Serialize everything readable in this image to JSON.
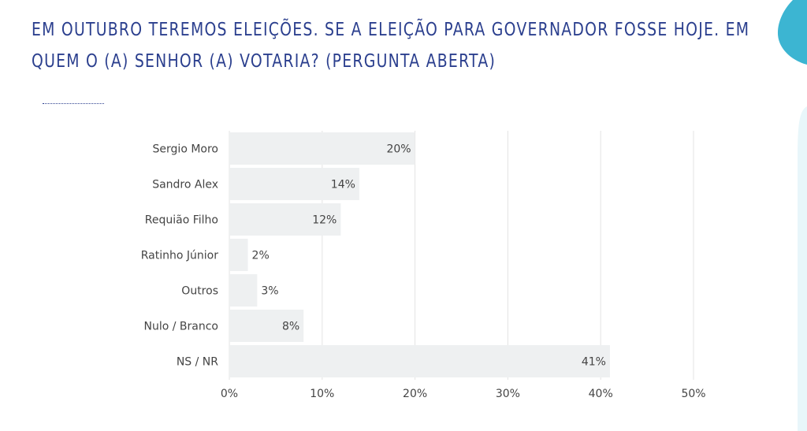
{
  "title": {
    "line1": "EM OUTUBRO TEREMOS ELEIÇÕES. SE A ELEIÇÃO PARA GOVERNADOR FOSSE HOJE. EM",
    "line2": "QUEM O (A) SENHOR (A) VOTARIA? (PERGUNTA ABERTA)"
  },
  "colors": {
    "title": "#2b3f8e",
    "bar": "#eef0f1",
    "grid": "#e3e3e3",
    "text": "#444444",
    "accent": "#3cb5d2"
  },
  "chart_data": {
    "type": "bar",
    "orientation": "horizontal",
    "categories": [
      "Sergio Moro",
      "Sandro Alex",
      "Requião Filho",
      "Ratinho Júnior",
      "Outros",
      "Nulo / Branco",
      "NS / NR"
    ],
    "values": [
      20,
      14,
      12,
      2,
      3,
      8,
      41
    ],
    "value_labels": [
      "20%",
      "14%",
      "12%",
      "2%",
      "3%",
      "8%",
      "41%"
    ],
    "xlim": [
      0,
      50
    ],
    "xticks": [
      "0%",
      "10%",
      "20%",
      "30%",
      "40%",
      "50%"
    ],
    "grid": true,
    "legend": "none"
  }
}
